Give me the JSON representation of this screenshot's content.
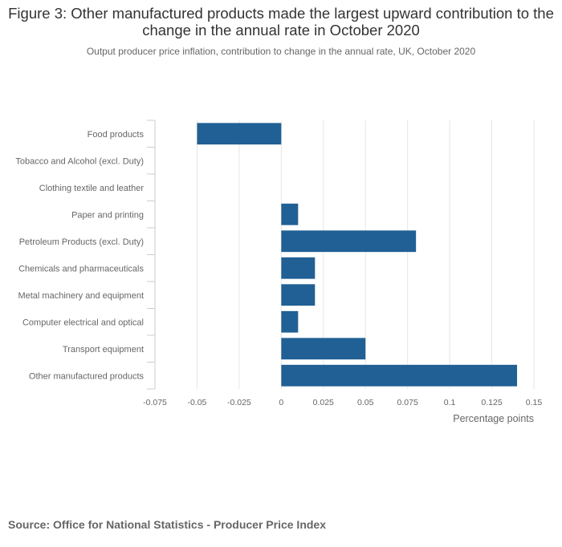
{
  "chart_data": {
    "type": "bar",
    "orientation": "horizontal",
    "title": "Figure 3: Other manufactured products made the largest upward contribution to the change in the annual rate in October 2020",
    "subtitle": "Output producer price inflation, contribution to change in the annual rate, UK, October 2020",
    "categories": [
      "Food products",
      "Tobacco and Alcohol (excl. Duty)",
      "Clothing textile and leather",
      "Paper and printing",
      "Petroleum Products (excl. Duty)",
      "Chemicals and pharmaceuticals",
      "Metal machinery and equipment",
      "Computer electrical and optical",
      "Transport equipment",
      "Other manufactured products"
    ],
    "values": [
      -0.05,
      0,
      0,
      0.01,
      0.08,
      0.02,
      0.02,
      0.01,
      0.05,
      0.14
    ],
    "xlabel": "Percentage points",
    "ylabel": "",
    "xlim": [
      -0.075,
      0.15
    ],
    "xticks": [
      -0.075,
      -0.05,
      -0.025,
      0,
      0.025,
      0.05,
      0.075,
      0.1,
      0.125,
      0.15
    ],
    "xtick_labels": [
      "-0.075",
      "-0.05",
      "-0.025",
      "0",
      "0.025",
      "0.05",
      "0.075",
      "0.1",
      "0.125",
      "0.15"
    ],
    "grid": true,
    "bar_color": "#206095",
    "source": "Source: Office for National Statistics - Producer Price Index"
  }
}
